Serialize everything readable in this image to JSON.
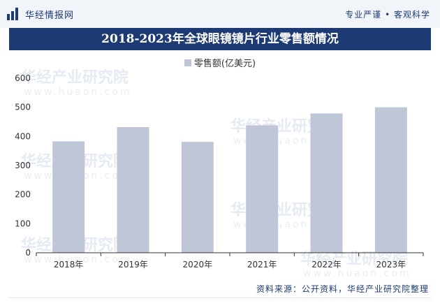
{
  "header": {
    "logo_text": "华经情报网",
    "tagline": "专业严谨 • 客观科学"
  },
  "watermark": {
    "name": "华经产业研究院",
    "url": "www.huaon.com"
  },
  "footer": {
    "source": "资料来源：公开资料，华经产业研究院整理"
  },
  "colors": {
    "brand": "#1d3a74",
    "bar": "#bfc6d7"
  },
  "chart_data": {
    "type": "bar",
    "title": "2018-2023年全球眼镜镜片行业零售额情况",
    "categories": [
      "2018年",
      "2019年",
      "2020年",
      "2021年",
      "2022年",
      "2023年"
    ],
    "series": [
      {
        "name": "零售额(亿美元)",
        "values": [
          383,
          432,
          381,
          438,
          479,
          500
        ]
      }
    ],
    "ylim": [
      0,
      600
    ],
    "yticks": [
      0,
      100,
      200,
      300,
      400,
      500,
      600
    ],
    "xlabel": "",
    "ylabel": "",
    "legend_position": "top-center",
    "grid": false
  }
}
